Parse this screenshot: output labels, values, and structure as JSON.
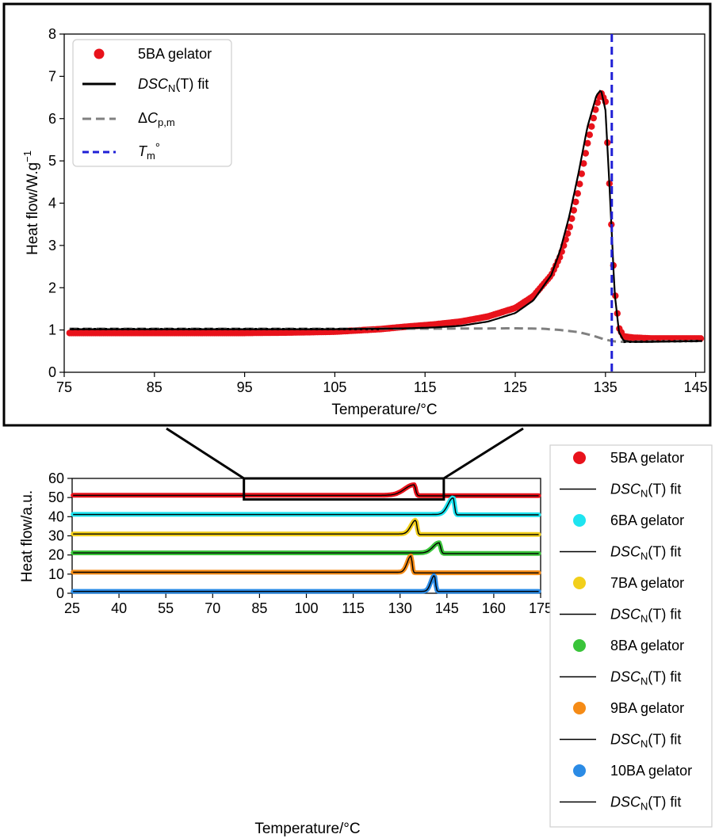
{
  "chart_data": [
    {
      "type": "line",
      "panel": "inset",
      "xlabel": "Temperature/°C",
      "ylabel": "Heat flow/W.g",
      "ylabel_sup": "−1",
      "xlim": [
        75,
        146
      ],
      "ylim": [
        0,
        8
      ],
      "xticks": [
        "75",
        "85",
        "95",
        "105",
        "115",
        "125",
        "135",
        "145"
      ],
      "xtick_values": [
        75,
        85,
        95,
        105,
        115,
        125,
        135,
        145
      ],
      "yticks": [
        "0",
        "1",
        "2",
        "3",
        "4",
        "5",
        "6",
        "7",
        "8"
      ],
      "ytick_values": [
        0,
        1,
        2,
        3,
        4,
        5,
        6,
        7,
        8
      ],
      "legend_position": "top-left",
      "legend": [
        {
          "key": "data",
          "label": "5BA gelator"
        },
        {
          "key": "fit",
          "label_italic": "DSC",
          "label_sub": "N",
          "label_rest": "(T) fit"
        },
        {
          "key": "dcp",
          "label_pre": "Δ",
          "label_italic": "C",
          "label_sub": "p,m"
        },
        {
          "key": "tm",
          "label_italic": "T",
          "label_sub": "m",
          "label_rest": "°"
        }
      ],
      "colors": {
        "data": "#e8121b",
        "fit": "#000000",
        "dcp": "#808080",
        "tm": "#1f1fd6"
      },
      "tm_value": 135.7,
      "series": [
        {
          "name": "5BA gelator",
          "key": "data",
          "x": [
            75,
            80,
            85,
            90,
            95,
            100,
            105,
            110,
            113,
            116,
            119,
            122,
            125,
            127,
            129,
            130,
            131,
            132,
            133,
            134,
            134.5,
            135,
            135.5,
            136,
            136.5,
            137,
            138,
            140,
            143,
            146
          ],
          "y": [
            0.93,
            0.93,
            0.93,
            0.93,
            0.93,
            0.94,
            0.96,
            1.02,
            1.08,
            1.13,
            1.2,
            1.32,
            1.52,
            1.8,
            2.3,
            2.75,
            3.4,
            4.3,
            5.4,
            6.3,
            6.62,
            6.4,
            4.2,
            2.0,
            1.05,
            0.85,
            0.82,
            0.8,
            0.8,
            0.8
          ]
        },
        {
          "name": "DSCN(T) fit",
          "key": "fit",
          "x": [
            75,
            80,
            85,
            90,
            95,
            100,
            105,
            110,
            113,
            116,
            119,
            122,
            125,
            127,
            129,
            130,
            131,
            132,
            133,
            134,
            134.5,
            135,
            135.5,
            136,
            136.5,
            137,
            138,
            140,
            143,
            146
          ],
          "y": [
            1.02,
            1.02,
            1.02,
            1.02,
            1.02,
            1.02,
            1.02,
            1.03,
            1.04,
            1.06,
            1.1,
            1.2,
            1.4,
            1.7,
            2.3,
            2.9,
            3.7,
            4.7,
            5.8,
            6.55,
            6.68,
            6.2,
            4.2,
            1.9,
            0.95,
            0.75,
            0.72,
            0.72,
            0.73,
            0.74
          ]
        },
        {
          "name": "ΔCp,m",
          "key": "dcp",
          "x": [
            75,
            90,
            105,
            115,
            125,
            128,
            130,
            132,
            133,
            134,
            135,
            136,
            137,
            140,
            146
          ],
          "y": [
            1.03,
            1.03,
            1.03,
            1.03,
            1.04,
            1.03,
            1.0,
            0.95,
            0.9,
            0.84,
            0.77,
            0.73,
            0.72,
            0.73,
            0.74
          ]
        }
      ]
    },
    {
      "type": "line",
      "panel": "main",
      "xlabel": "Temperature/°C",
      "ylabel": "Heat flow/a.u.",
      "xlim": [
        25,
        175
      ],
      "ylim": [
        0,
        60
      ],
      "xticks": [
        "25",
        "40",
        "55",
        "70",
        "85",
        "100",
        "115",
        "130",
        "145",
        "160",
        "175"
      ],
      "xtick_values": [
        25,
        40,
        55,
        70,
        85,
        100,
        115,
        130,
        145,
        160,
        175
      ],
      "yticks": [
        "0",
        "10",
        "20",
        "30",
        "40",
        "50",
        "60"
      ],
      "ytick_values": [
        0,
        10,
        20,
        30,
        40,
        50,
        60
      ],
      "zoom_box": {
        "x": [
          80,
          144
        ],
        "y": [
          49,
          60
        ]
      },
      "legend_position": "outside-right",
      "fit_label": {
        "italic": "DSC",
        "sub": "N",
        "rest": "(T) fit"
      },
      "series": [
        {
          "name": "5BA gelator",
          "color": "#e8121b",
          "baseline": 51.2,
          "peak_x": 134.5,
          "peak_height": 5.5,
          "rise": 4.0,
          "fall": 0.8,
          "after": 51.0
        },
        {
          "name": "6BA gelator",
          "color": "#1ee4f0",
          "baseline": 41.2,
          "peak_x": 147,
          "peak_height": 8.7,
          "rise": 2.2,
          "fall": 0.7,
          "after": 41.0
        },
        {
          "name": "7BA gelator",
          "color": "#f2cf1b",
          "baseline": 31.0,
          "peak_x": 135,
          "peak_height": 7.2,
          "rise": 2.0,
          "fall": 0.7,
          "after": 30.7
        },
        {
          "name": "8BA gelator",
          "color": "#3ac43a",
          "baseline": 21.1,
          "peak_x": 142.5,
          "peak_height": 5.3,
          "rise": 2.6,
          "fall": 0.8,
          "after": 20.8
        },
        {
          "name": "9BA gelator",
          "color": "#f58b16",
          "baseline": 11.0,
          "peak_x": 133.5,
          "peak_height": 8.5,
          "rise": 1.6,
          "fall": 0.6,
          "after": 10.7
        },
        {
          "name": "10BA gelator",
          "color": "#2b8be5",
          "baseline": 1.0,
          "peak_x": 141,
          "peak_height": 8.3,
          "rise": 1.5,
          "fall": 0.6,
          "after": 1.0
        }
      ]
    }
  ]
}
